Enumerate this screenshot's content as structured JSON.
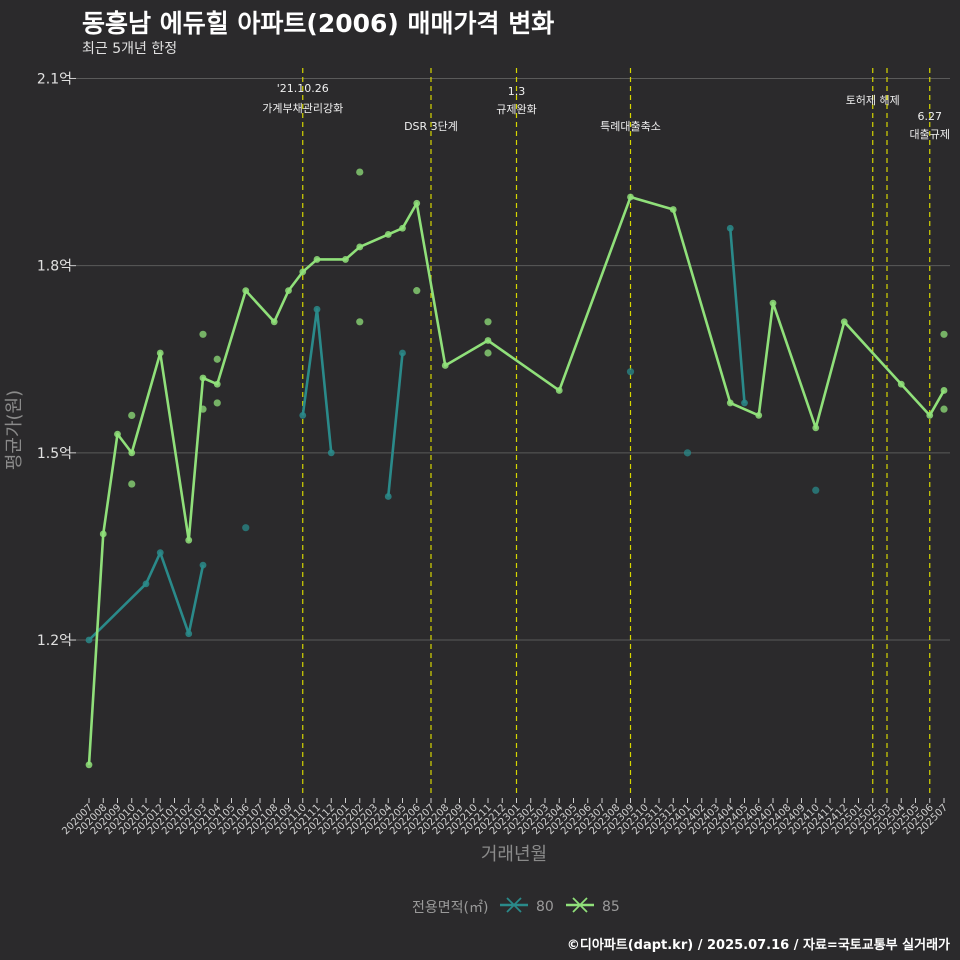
{
  "header": {
    "title": "동흥남 에듀힐 아파트(2006) 매매가격 변화",
    "subtitle": "최근 5개년 한정"
  },
  "footer": {
    "caption": "©디아파트(dapt.kr) / 2025.07.16 / 자료=국토교통부 실거래가"
  },
  "colors": {
    "background": "#2b2a2c",
    "grid": "#5a5a5a",
    "series_80": "#2a8a8a",
    "series_85": "#90e07a",
    "event_line": "#d6d600"
  },
  "chart_data": {
    "type": "line",
    "xlabel": "거래년월",
    "ylabel": "평균가(원)",
    "ylim": [
      0.95,
      2.12
    ],
    "yticks": [
      {
        "value": 1.2,
        "label": "1.2억"
      },
      {
        "value": 1.5,
        "label": "1.5억"
      },
      {
        "value": 1.8,
        "label": "1.8억"
      },
      {
        "value": 2.1,
        "label": "2.1억"
      }
    ],
    "categories": [
      "202007",
      "202008",
      "202009",
      "202010",
      "202011",
      "202012",
      "202101",
      "202102",
      "202103",
      "202104",
      "202105",
      "202106",
      "202107",
      "202108",
      "202109",
      "202110",
      "202111",
      "202112",
      "202201",
      "202202",
      "202203",
      "202204",
      "202205",
      "202206",
      "202207",
      "202208",
      "202209",
      "202210",
      "202211",
      "202212",
      "202301",
      "202302",
      "202303",
      "202304",
      "202305",
      "202306",
      "202307",
      "202308",
      "202309",
      "202310",
      "202311",
      "202312",
      "202401",
      "202402",
      "202403",
      "202404",
      "202405",
      "202406",
      "202407",
      "202408",
      "202409",
      "202410",
      "202411",
      "202412",
      "202501",
      "202502",
      "202503",
      "202504",
      "202505",
      "202506",
      "202507"
    ],
    "grid": true,
    "legend": {
      "title": "전용면적(㎡)",
      "position": "bottom",
      "entries": [
        "80",
        "85"
      ]
    },
    "series": [
      {
        "name": "80",
        "line": [
          {
            "x": "202007",
            "y": 1.2
          },
          {
            "x": "202011",
            "y": 1.29
          },
          {
            "x": "202012",
            "y": 1.34
          },
          {
            "x": "202102",
            "y": 1.21
          },
          {
            "x": "202103",
            "y": 1.32
          }
        ],
        "line2": [
          {
            "x": "202110",
            "y": 1.56
          },
          {
            "x": "202111",
            "y": 1.73
          },
          {
            "x": "202112",
            "y": 1.5
          }
        ],
        "line3": [
          {
            "x": "202204",
            "y": 1.43
          },
          {
            "x": "202205",
            "y": 1.66
          }
        ],
        "line4": [
          {
            "x": "202404",
            "y": 1.86
          },
          {
            "x": "202405",
            "y": 1.58
          }
        ],
        "points": [
          {
            "x": "202106",
            "y": 1.38
          },
          {
            "x": "202309",
            "y": 1.63
          },
          {
            "x": "202401",
            "y": 1.5
          },
          {
            "x": "202410",
            "y": 1.44
          }
        ]
      },
      {
        "name": "85",
        "line": [
          {
            "x": "202007",
            "y": 1.0
          },
          {
            "x": "202008",
            "y": 1.37
          },
          {
            "x": "202009",
            "y": 1.53
          },
          {
            "x": "202010",
            "y": 1.5
          },
          {
            "x": "202012",
            "y": 1.66
          },
          {
            "x": "202102",
            "y": 1.36
          },
          {
            "x": "202103",
            "y": 1.62
          },
          {
            "x": "202104",
            "y": 1.61
          },
          {
            "x": "202106",
            "y": 1.76
          },
          {
            "x": "202108",
            "y": 1.71
          },
          {
            "x": "202109",
            "y": 1.76
          },
          {
            "x": "202110",
            "y": 1.79
          },
          {
            "x": "202111",
            "y": 1.81
          },
          {
            "x": "202201",
            "y": 1.81
          },
          {
            "x": "202202",
            "y": 1.83
          },
          {
            "x": "202204",
            "y": 1.85
          },
          {
            "x": "202205",
            "y": 1.86
          },
          {
            "x": "202206",
            "y": 1.9
          },
          {
            "x": "202208",
            "y": 1.64
          },
          {
            "x": "202211",
            "y": 1.68
          },
          {
            "x": "202304",
            "y": 1.6
          },
          {
            "x": "202309",
            "y": 1.91
          },
          {
            "x": "202312",
            "y": 1.89
          },
          {
            "x": "202404",
            "y": 1.58
          },
          {
            "x": "202406",
            "y": 1.56
          },
          {
            "x": "202407",
            "y": 1.74
          },
          {
            "x": "202410",
            "y": 1.54
          },
          {
            "x": "202412",
            "y": 1.71
          },
          {
            "x": "202504",
            "y": 1.61
          },
          {
            "x": "202506",
            "y": 1.56
          },
          {
            "x": "202507",
            "y": 1.6
          }
        ],
        "points": [
          {
            "x": "202010",
            "y": 1.56
          },
          {
            "x": "202010",
            "y": 1.45
          },
          {
            "x": "202103",
            "y": 1.69
          },
          {
            "x": "202103",
            "y": 1.57
          },
          {
            "x": "202104",
            "y": 1.65
          },
          {
            "x": "202104",
            "y": 1.58
          },
          {
            "x": "202202",
            "y": 1.95
          },
          {
            "x": "202202",
            "y": 1.71
          },
          {
            "x": "202206",
            "y": 1.76
          },
          {
            "x": "202211",
            "y": 1.71
          },
          {
            "x": "202211",
            "y": 1.66
          },
          {
            "x": "202507",
            "y": 1.69
          },
          {
            "x": "202507",
            "y": 1.57
          }
        ]
      }
    ],
    "annotations": [
      {
        "x": "202110",
        "lines": [
          "'21.10.26",
          "가계부채관리강화"
        ]
      },
      {
        "x": "202207",
        "lines": [
          "DSR 3단계"
        ]
      },
      {
        "x": "202301",
        "lines": [
          "1.3",
          "규제완화"
        ]
      },
      {
        "x": "202309",
        "lines": [
          "특례대출축소"
        ]
      },
      {
        "x": "202502",
        "lines": [
          "토허제 해제"
        ]
      },
      {
        "x": "202503",
        "lines": []
      },
      {
        "x": "202506",
        "lines": [
          "6.27",
          "대출규제"
        ]
      }
    ]
  }
}
